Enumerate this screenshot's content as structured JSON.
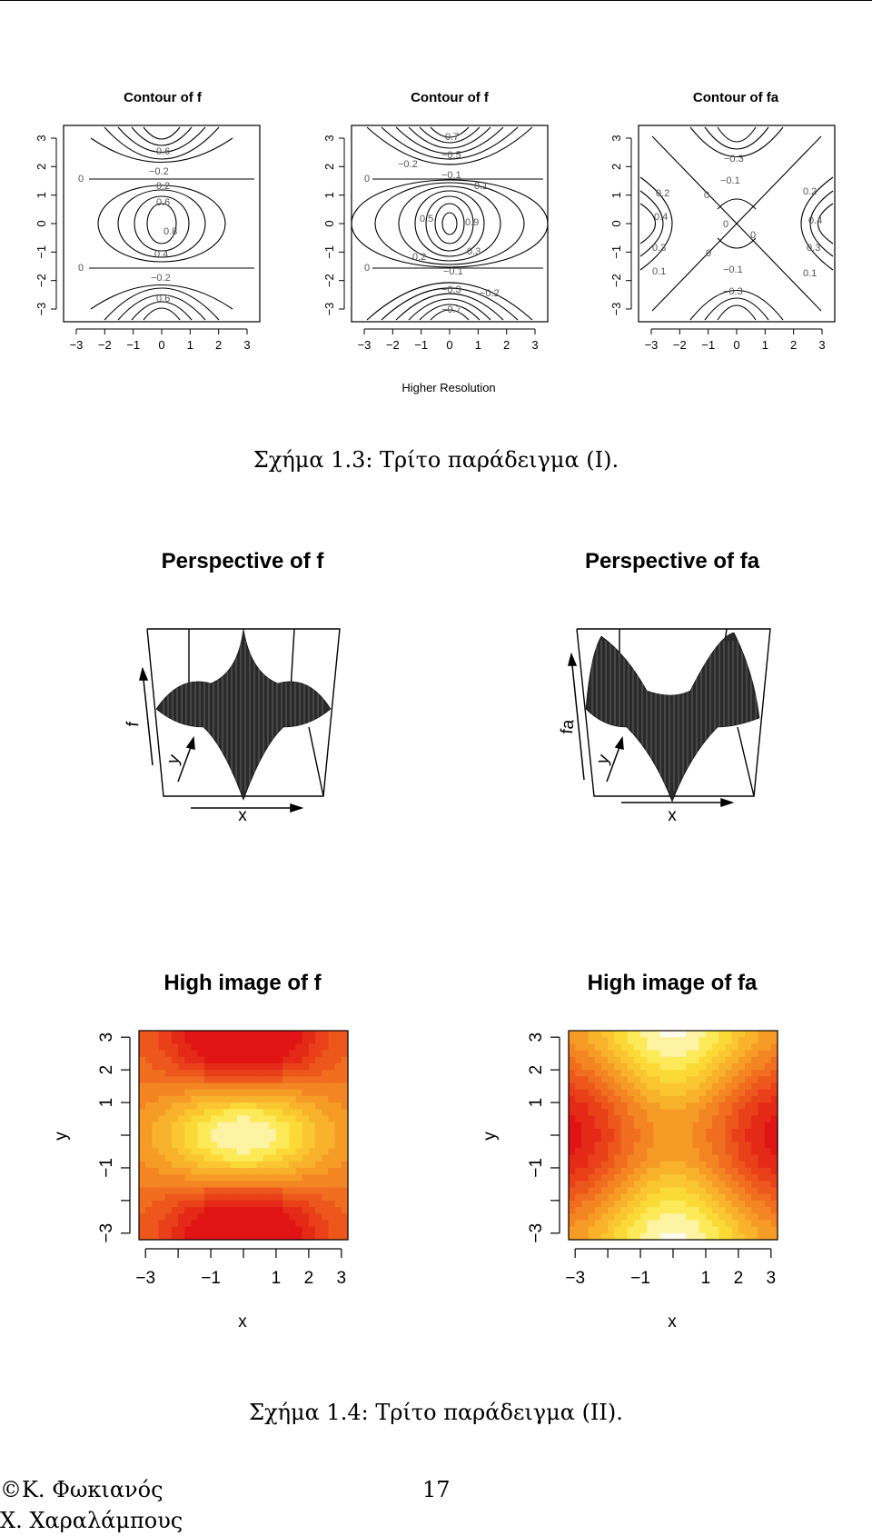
{
  "figure_1_3": {
    "chart_data": [
      {
        "type": "contour",
        "title": "Contour of f",
        "xlim": [
          -3,
          3
        ],
        "ylim": [
          -3,
          3
        ],
        "xticks": [
          "−3",
          "−2",
          "−1",
          "0",
          "1",
          "2",
          "3"
        ],
        "yticks": [
          "−3",
          "−2",
          "−1",
          "0",
          "1",
          "2",
          "3"
        ],
        "contour_labels": [
          "0.6",
          "−0.2",
          "0",
          "0.2",
          "0.6",
          "0.8",
          "0.4",
          "0",
          "−0.2",
          "0.6"
        ]
      },
      {
        "type": "contour",
        "title": "Contour of f",
        "xlim": [
          -3,
          3
        ],
        "ylim": [
          -3,
          3
        ],
        "xticks": [
          "−3",
          "−2",
          "−1",
          "0",
          "1",
          "2",
          "3"
        ],
        "yticks": [
          "−3",
          "−2",
          "−1",
          "0",
          "1",
          "2",
          "3"
        ],
        "contour_labels": [
          "0.7",
          "−0.5",
          "−0.2",
          "−0.1",
          "0.1",
          "0",
          "0.5",
          "0.9",
          "0.3",
          "0.2",
          "0",
          "−0.1",
          "−0.3",
          "−0.2",
          "−0.7"
        ]
      },
      {
        "type": "contour",
        "title": "Contour of fa",
        "xlim": [
          -3,
          3
        ],
        "ylim": [
          -3,
          3
        ],
        "xticks": [
          "−3",
          "−2",
          "−1",
          "0",
          "1",
          "2",
          "3"
        ],
        "yticks": [
          "−3",
          "−2",
          "−1",
          "0",
          "1",
          "2",
          "3"
        ],
        "contour_labels": [
          "−0.3",
          "−0.1",
          "0.2",
          "0",
          "0.4",
          "0.3",
          "0.1",
          "0",
          "0",
          "0.2",
          "0.4",
          "0.3",
          "0.1",
          "0",
          "−0.1",
          "−0.3"
        ]
      }
    ],
    "subtitle": "Higher Resolution",
    "caption": "Σχήμα 1.3: Τρίτο παράδειγμα (Ι)."
  },
  "figure_1_4": {
    "perspectives": [
      {
        "title": "Perspective of f",
        "xlabel": "x",
        "ylabel": "y",
        "zlabel": "f"
      },
      {
        "title": "Perspective of fa",
        "xlabel": "x",
        "ylabel": "y",
        "zlabel": "fa"
      }
    ],
    "chart_data": [
      {
        "type": "heatmap",
        "title": "High image of f",
        "xlabel": "x",
        "ylabel": "y",
        "xlim": [
          -3.2,
          3.2
        ],
        "ylim": [
          -3.2,
          3.2
        ],
        "xticks": [
          "−3",
          "−1",
          "1",
          "2",
          "3"
        ],
        "yticks": [
          "−3",
          "−1",
          "1",
          "2",
          "3"
        ],
        "colormap": "heat (red-orange-yellow-white)"
      },
      {
        "type": "heatmap",
        "title": "High image of fa",
        "xlabel": "x",
        "ylabel": "y",
        "xlim": [
          -3.2,
          3.2
        ],
        "ylim": [
          -3.2,
          3.2
        ],
        "xticks": [
          "−3",
          "−1",
          "1",
          "2",
          "3"
        ],
        "yticks": [
          "−3",
          "−1",
          "1",
          "2",
          "3"
        ],
        "colormap": "heat (red-orange-yellow-white)"
      }
    ],
    "caption": "Σχήμα 1.4: Τρίτο παράδειγμα (ΙΙ)."
  },
  "footer": {
    "author_line1": "©Κ. Φωκιανός",
    "author_line2": "Χ. Χαραλάμπους",
    "page_number": "17"
  }
}
